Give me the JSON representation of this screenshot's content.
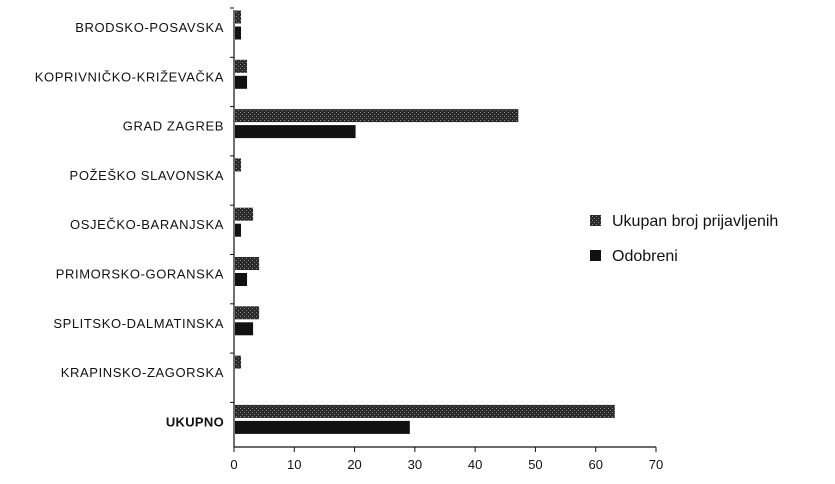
{
  "chart_data": {
    "type": "bar",
    "orientation": "horizontal",
    "categories": [
      "BRODSKO-POSAVSKA",
      "KOPRIVNIČKO-KRIŽEVAČKA",
      "GRAD ZAGREB",
      "POŽEŠKO SLAVONSKA",
      "OSJEČKO-BARANJSKA",
      "PRIMORSKO-GORANSKA",
      "SPLITSKO-DALMATINSKA",
      "KRAPINSKO-ZAGORSKA",
      "UKUPNO"
    ],
    "bold_categories": [
      "UKUPNO"
    ],
    "series": [
      {
        "name": "Ukupan broj prijavljenih",
        "values": [
          1,
          2,
          47,
          1,
          3,
          4,
          4,
          1,
          63
        ],
        "color": "#222222",
        "pattern": "textured"
      },
      {
        "name": "Odobreni",
        "values": [
          1,
          2,
          20,
          0,
          1,
          2,
          3,
          0,
          29
        ],
        "color": "#111111",
        "pattern": "solid"
      }
    ],
    "xticks": [
      "0",
      "10",
      "20",
      "30",
      "40",
      "50",
      "60",
      "70"
    ],
    "xlim": [
      0,
      70
    ],
    "grid": false,
    "legend_position": "right"
  }
}
